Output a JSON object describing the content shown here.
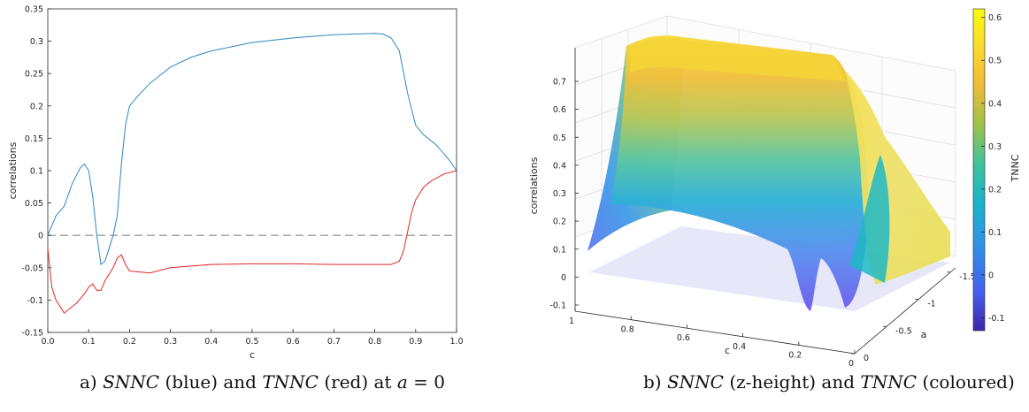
{
  "captions": {
    "a": {
      "prefix": "a)",
      "v1": "SNNC",
      "t1": "(blue) and",
      "v2": "TNNC",
      "t2": "(red) at",
      "v3": "a",
      "t3": "= 0"
    },
    "b": {
      "prefix": "b)",
      "v1": "SNNC",
      "t1": "(z-height) and",
      "v2": "TNNC",
      "t2": "(coloured)"
    }
  },
  "colors": {
    "snnc": "#2E86C1",
    "tnnc": "#E32626",
    "zero_line": "#888888"
  },
  "chart_data": [
    {
      "type": "line",
      "xlabel": "c",
      "ylabel": "correlations",
      "xlim": [
        0.0,
        1.0
      ],
      "ylim": [
        -0.15,
        0.35
      ],
      "xticks": [
        "0.0",
        "0.1",
        "0.2",
        "0.3",
        "0.4",
        "0.5",
        "0.6",
        "0.7",
        "0.8",
        "0.9",
        "1.0"
      ],
      "yticks": [
        "-0.15",
        "-0.1",
        "-0.05",
        "0",
        "0.05",
        "0.1",
        "0.15",
        "0.2",
        "0.25",
        "0.3",
        "0.35"
      ],
      "grid": false,
      "reference_line": {
        "y": 0,
        "style": "dashed"
      },
      "series": [
        {
          "color": "#2E86C1",
          "x": [
            0.0,
            0.01,
            0.02,
            0.04,
            0.06,
            0.08,
            0.09,
            0.1,
            0.11,
            0.12,
            0.13,
            0.14,
            0.15,
            0.16,
            0.17,
            0.18,
            0.19,
            0.2,
            0.22,
            0.25,
            0.3,
            0.35,
            0.4,
            0.5,
            0.6,
            0.7,
            0.8,
            0.82,
            0.84,
            0.86,
            0.88,
            0.9,
            0.92,
            0.95,
            0.98,
            1.0
          ],
          "y": [
            0.0,
            0.015,
            0.03,
            0.045,
            0.08,
            0.105,
            0.11,
            0.1,
            0.06,
            0.0,
            -0.045,
            -0.04,
            -0.02,
            0.0,
            0.03,
            0.11,
            0.17,
            0.2,
            0.215,
            0.235,
            0.26,
            0.275,
            0.285,
            0.298,
            0.305,
            0.31,
            0.312,
            0.311,
            0.305,
            0.285,
            0.22,
            0.17,
            0.155,
            0.14,
            0.118,
            0.1
          ]
        },
        {
          "color": "#E32626",
          "x": [
            0.0,
            0.01,
            0.02,
            0.03,
            0.04,
            0.05,
            0.07,
            0.09,
            0.1,
            0.11,
            0.12,
            0.13,
            0.14,
            0.15,
            0.16,
            0.17,
            0.18,
            0.19,
            0.2,
            0.25,
            0.3,
            0.4,
            0.5,
            0.6,
            0.7,
            0.8,
            0.84,
            0.86,
            0.87,
            0.88,
            0.89,
            0.9,
            0.92,
            0.94,
            0.97,
            1.0
          ],
          "y": [
            -0.02,
            -0.08,
            -0.1,
            -0.11,
            -0.12,
            -0.115,
            -0.105,
            -0.09,
            -0.08,
            -0.075,
            -0.085,
            -0.085,
            -0.07,
            -0.06,
            -0.05,
            -0.035,
            -0.03,
            -0.045,
            -0.055,
            -0.058,
            -0.05,
            -0.045,
            -0.044,
            -0.044,
            -0.045,
            -0.045,
            -0.045,
            -0.04,
            -0.025,
            0.005,
            0.035,
            0.055,
            0.075,
            0.085,
            0.095,
            0.1
          ]
        }
      ]
    },
    {
      "type": "surface",
      "xlabel": "c",
      "ylabel": "a",
      "zlabel": "correlations",
      "colorbar_label": "TNNC",
      "xticks": [
        "1",
        "0.8",
        "0.6",
        "0.4",
        "0.2",
        "0"
      ],
      "yticks": [
        "0",
        "-0.5",
        "-1",
        "-1.5"
      ],
      "zticks": [
        "-0.1",
        "0",
        "0.1",
        "0.2",
        "0.3",
        "0.4",
        "0.5",
        "0.6",
        "0.7"
      ],
      "colorbar_ticks": [
        "-0.1",
        "0",
        "0.1",
        "0.2",
        "0.3",
        "0.4",
        "0.5",
        "0.6"
      ],
      "colormap": [
        "#3E26A8",
        "#4360F0",
        "#2C96E6",
        "#1BB4C8",
        "#3FC39B",
        "#9DC249",
        "#EFBA38",
        "#FAD92E",
        "#F9FB0E"
      ]
    }
  ]
}
